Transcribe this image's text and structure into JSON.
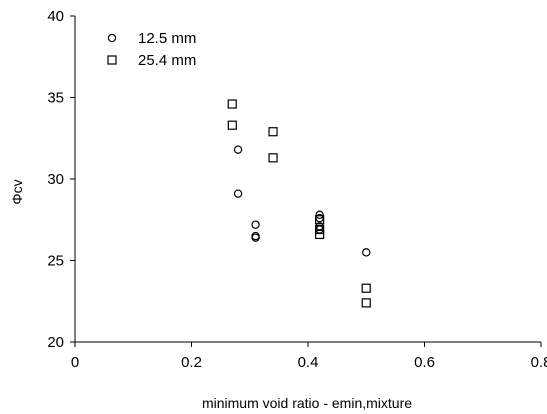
{
  "chart_data": {
    "type": "scatter",
    "title": "",
    "xlabel": "minimum void ratio - emin,mixture",
    "ylabel": "Φcv",
    "xlim": [
      0,
      0.8
    ],
    "ylim": [
      20,
      40
    ],
    "xticks": [
      0,
      0.2,
      0.4,
      0.6,
      0.8
    ],
    "yticks": [
      20,
      25,
      30,
      35,
      40
    ],
    "xtick_labels": [
      "0",
      "0.2",
      "0.4",
      "0.6",
      "0.8"
    ],
    "ytick_labels": [
      "20",
      "25",
      "30",
      "35",
      "40"
    ],
    "grid": false,
    "legend": "top-left",
    "series": [
      {
        "name": "12.5 mm",
        "marker": "circle",
        "x": [
          0.28,
          0.28,
          0.31,
          0.31,
          0.31,
          0.42,
          0.42,
          0.42,
          0.42,
          0.5
        ],
        "y": [
          31.8,
          29.1,
          27.2,
          26.5,
          26.4,
          27.8,
          27.6,
          27.1,
          26.9,
          25.5
        ]
      },
      {
        "name": "25.4 mm",
        "marker": "square",
        "x": [
          0.27,
          0.27,
          0.34,
          0.34,
          0.42,
          0.42,
          0.42,
          0.5,
          0.5
        ],
        "y": [
          34.6,
          33.3,
          32.9,
          31.3,
          27.5,
          26.9,
          26.6,
          23.3,
          22.4
        ]
      }
    ]
  }
}
